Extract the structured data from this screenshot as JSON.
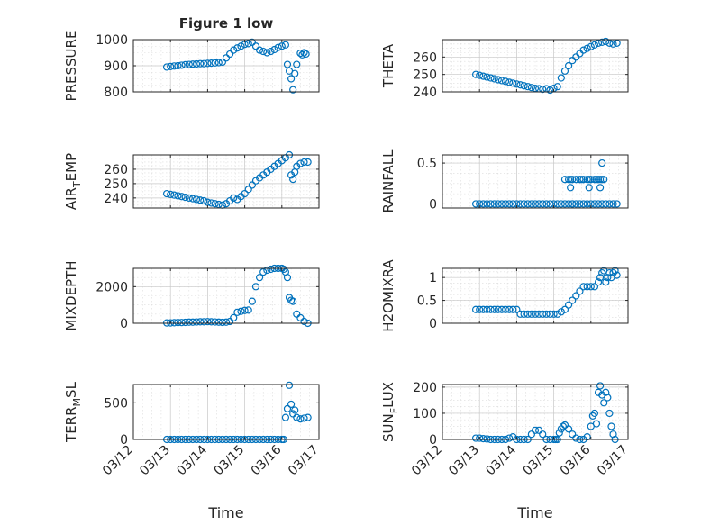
{
  "figure": {
    "title": "Figure 1 low",
    "xlabel": "Time",
    "marker_color": "#0072BD",
    "x_ticks": [
      "03/12",
      "03/13",
      "03/14",
      "03/15",
      "03/16",
      "03/17"
    ]
  },
  "chart_data": [
    {
      "type": "scatter",
      "ylabel": "PRESSURE",
      "ylabel_sub": "",
      "ylim": [
        800,
        1000
      ],
      "yticks": [
        800,
        900,
        1000
      ],
      "ytick_labels": [
        "800",
        "900",
        "1000"
      ],
      "grid": true,
      "marker": "circle",
      "x": [
        12.9,
        13.0,
        13.1,
        13.2,
        13.3,
        13.4,
        13.5,
        13.6,
        13.7,
        13.8,
        13.9,
        14.0,
        14.1,
        14.2,
        14.3,
        14.4,
        14.5,
        14.6,
        14.7,
        14.8,
        14.9,
        15.0,
        15.1,
        15.2,
        15.3,
        15.4,
        15.5,
        15.6,
        15.7,
        15.8,
        15.9,
        16.0,
        16.1,
        16.15,
        16.2,
        16.25,
        16.3,
        16.35,
        16.4,
        16.5,
        16.55,
        16.6,
        16.65
      ],
      "y": [
        895,
        897,
        899,
        900,
        902,
        904,
        905,
        906,
        907,
        908,
        908,
        909,
        910,
        911,
        912,
        914,
        930,
        945,
        960,
        968,
        975,
        982,
        985,
        990,
        975,
        960,
        955,
        950,
        955,
        962,
        970,
        975,
        980,
        905,
        880,
        850,
        808,
        870,
        905,
        948,
        942,
        950,
        945
      ]
    },
    {
      "type": "scatter",
      "ylabel": "THETA",
      "ylabel_sub": "",
      "ylim": [
        240,
        270
      ],
      "yticks": [
        240,
        250,
        260
      ],
      "ytick_labels": [
        "240",
        "250",
        "260"
      ],
      "grid": true,
      "marker": "circle",
      "x": [
        12.9,
        13.0,
        13.1,
        13.2,
        13.3,
        13.4,
        13.5,
        13.6,
        13.7,
        13.8,
        13.9,
        14.0,
        14.1,
        14.2,
        14.3,
        14.4,
        14.5,
        14.6,
        14.7,
        14.8,
        14.9,
        15.0,
        15.1,
        15.2,
        15.3,
        15.4,
        15.5,
        15.6,
        15.7,
        15.8,
        15.9,
        16.0,
        16.1,
        16.2,
        16.3,
        16.4,
        16.5,
        16.6,
        16.7
      ],
      "y": [
        250,
        249.5,
        249,
        248.5,
        248,
        247.5,
        247,
        246.5,
        246,
        245.5,
        245,
        244.5,
        244,
        243.5,
        243,
        242.5,
        242,
        241.8,
        241.5,
        241.8,
        241,
        242,
        243,
        248,
        252,
        255,
        258,
        260,
        262,
        264,
        265,
        266,
        267,
        268,
        268.5,
        269,
        268,
        267.5,
        268
      ]
    },
    {
      "type": "scatter",
      "ylabel": "AIR",
      "ylabel_sub": "T",
      "ylabel_rest": "EMP",
      "ylim": [
        233,
        270
      ],
      "yticks": [
        240,
        250,
        260
      ],
      "ytick_labels": [
        "240",
        "250",
        "260"
      ],
      "grid": true,
      "marker": "circle",
      "x": [
        12.9,
        13.0,
        13.1,
        13.2,
        13.3,
        13.4,
        13.5,
        13.6,
        13.7,
        13.8,
        13.9,
        14.0,
        14.1,
        14.2,
        14.3,
        14.4,
        14.5,
        14.6,
        14.7,
        14.8,
        14.9,
        15.0,
        15.1,
        15.2,
        15.3,
        15.4,
        15.5,
        15.6,
        15.7,
        15.8,
        15.9,
        16.0,
        16.1,
        16.2,
        16.25,
        16.3,
        16.35,
        16.4,
        16.5,
        16.6,
        16.7
      ],
      "y": [
        243,
        242.5,
        242,
        241.5,
        241,
        240.5,
        240,
        239.5,
        239,
        238.5,
        238,
        237,
        236.5,
        236,
        235.5,
        235,
        236,
        238,
        240,
        239,
        241,
        243,
        246,
        249,
        252,
        254,
        256,
        258,
        260,
        262,
        264,
        266,
        268,
        270,
        256,
        253,
        258,
        262,
        264,
        265,
        265
      ]
    },
    {
      "type": "scatter",
      "ylabel": "RAINFALL",
      "ylabel_sub": "",
      "ylim": [
        -0.05,
        0.6
      ],
      "yticks": [
        0,
        0.5
      ],
      "ytick_labels": [
        "0",
        "0.5"
      ],
      "grid": true,
      "marker": "circle",
      "x": [
        12.9,
        13.0,
        13.1,
        13.2,
        13.3,
        13.4,
        13.5,
        13.6,
        13.7,
        13.8,
        13.9,
        14.0,
        14.1,
        14.2,
        14.3,
        14.4,
        14.5,
        14.6,
        14.7,
        14.8,
        14.9,
        15.0,
        15.1,
        15.2,
        15.3,
        15.4,
        15.5,
        15.6,
        15.7,
        15.8,
        15.9,
        16.0,
        16.1,
        16.2,
        16.3,
        16.4,
        16.5,
        16.6,
        16.7,
        15.3,
        15.4,
        15.45,
        15.5,
        15.6,
        15.7,
        15.75,
        15.8,
        15.9,
        15.95,
        16.0,
        16.1,
        16.15,
        16.2,
        16.25,
        16.3,
        16.35,
        15.45,
        15.95,
        16.25,
        16.3,
        15.5
      ],
      "y": [
        0,
        0,
        0,
        0,
        0,
        0,
        0,
        0,
        0,
        0,
        0,
        0,
        0,
        0,
        0,
        0,
        0,
        0,
        0,
        0,
        0,
        0,
        0,
        0,
        0,
        0,
        0,
        0,
        0,
        0,
        0,
        0,
        0,
        0,
        0,
        0,
        0,
        0,
        0,
        0.3,
        0.3,
        0.3,
        0.3,
        0.3,
        0.3,
        0.3,
        0.3,
        0.3,
        0.3,
        0.3,
        0.3,
        0.3,
        0.3,
        0.3,
        0.3,
        0.3,
        0.2,
        0.2,
        0.2,
        0.5,
        0
      ]
    },
    {
      "type": "scatter",
      "ylabel": "MIXDEPTH",
      "ylabel_sub": "",
      "ylim": [
        0,
        3000
      ],
      "yticks": [
        0,
        2000
      ],
      "ytick_labels": [
        "0",
        "2000"
      ],
      "grid": true,
      "marker": "circle",
      "x": [
        12.9,
        13.0,
        13.1,
        13.2,
        13.3,
        13.4,
        13.5,
        13.6,
        13.7,
        13.8,
        13.9,
        14.0,
        14.1,
        14.2,
        14.3,
        14.4,
        14.5,
        14.6,
        14.7,
        14.8,
        14.9,
        15.0,
        15.1,
        15.2,
        15.3,
        15.4,
        15.5,
        15.6,
        15.7,
        15.8,
        15.9,
        16.0,
        16.05,
        16.1,
        16.15,
        16.2,
        16.25,
        16.3,
        16.4,
        16.5,
        16.6,
        16.7
      ],
      "y": [
        20,
        20,
        30,
        40,
        40,
        50,
        60,
        60,
        70,
        80,
        80,
        90,
        80,
        70,
        60,
        50,
        60,
        100,
        300,
        600,
        650,
        700,
        720,
        1200,
        2000,
        2500,
        2800,
        2900,
        2950,
        3000,
        3000,
        3000,
        2950,
        2800,
        2500,
        1400,
        1250,
        1200,
        500,
        300,
        100,
        0
      ]
    },
    {
      "type": "scatter",
      "ylabel": "H2OMIXRA",
      "ylabel_sub": "",
      "ylim": [
        0,
        1.2
      ],
      "yticks": [
        0,
        0.5,
        1
      ],
      "ytick_labels": [
        "0",
        "0.5",
        "1"
      ],
      "grid": true,
      "marker": "circle",
      "x": [
        12.9,
        13.0,
        13.1,
        13.2,
        13.3,
        13.4,
        13.5,
        13.6,
        13.7,
        13.8,
        13.9,
        14.0,
        14.1,
        14.2,
        14.3,
        14.4,
        14.5,
        14.6,
        14.7,
        14.8,
        14.9,
        15.0,
        15.1,
        15.2,
        15.3,
        15.4,
        15.5,
        15.6,
        15.7,
        15.8,
        15.9,
        16.0,
        16.1,
        16.2,
        16.25,
        16.3,
        16.35,
        16.4,
        16.45,
        16.5,
        16.55,
        16.6,
        16.65,
        16.7
      ],
      "y": [
        0.3,
        0.3,
        0.3,
        0.3,
        0.3,
        0.3,
        0.3,
        0.3,
        0.3,
        0.3,
        0.3,
        0.3,
        0.2,
        0.2,
        0.2,
        0.2,
        0.2,
        0.2,
        0.2,
        0.2,
        0.2,
        0.2,
        0.2,
        0.25,
        0.3,
        0.4,
        0.5,
        0.6,
        0.7,
        0.8,
        0.8,
        0.8,
        0.8,
        0.9,
        1.0,
        1.1,
        1.15,
        0.9,
        1.0,
        1.1,
        1.0,
        1.1,
        1.15,
        1.05
      ]
    },
    {
      "type": "scatter",
      "ylabel": "TERR",
      "ylabel_sub": "M",
      "ylabel_rest": "SL",
      "ylim": [
        0,
        750
      ],
      "yticks": [
        0,
        500
      ],
      "ytick_labels": [
        "0",
        "500"
      ],
      "grid": true,
      "marker": "circle",
      "x": [
        12.9,
        13.0,
        13.1,
        13.2,
        13.3,
        13.4,
        13.5,
        13.6,
        13.7,
        13.8,
        13.9,
        14.0,
        14.1,
        14.2,
        14.3,
        14.4,
        14.5,
        14.6,
        14.7,
        14.8,
        14.9,
        15.0,
        15.1,
        15.2,
        15.3,
        15.4,
        15.5,
        15.6,
        15.7,
        15.8,
        15.9,
        16.0,
        16.05,
        16.1,
        16.15,
        16.2,
        16.25,
        16.3,
        16.35,
        16.4,
        16.5,
        16.6,
        16.7
      ],
      "y": [
        0,
        0,
        0,
        0,
        0,
        0,
        0,
        0,
        0,
        0,
        0,
        0,
        0,
        0,
        0,
        0,
        0,
        0,
        0,
        0,
        0,
        0,
        0,
        0,
        0,
        0,
        0,
        0,
        0,
        0,
        0,
        0,
        0,
        300,
        420,
        740,
        480,
        350,
        400,
        300,
        280,
        290,
        300
      ]
    },
    {
      "type": "scatter",
      "ylabel": "SUN",
      "ylabel_sub": "F",
      "ylabel_rest": "LUX",
      "ylim": [
        0,
        210
      ],
      "yticks": [
        0,
        100,
        200
      ],
      "ytick_labels": [
        "0",
        "100",
        "200"
      ],
      "grid": true,
      "marker": "circle",
      "x": [
        12.9,
        13.0,
        13.1,
        13.2,
        13.3,
        13.4,
        13.5,
        13.6,
        13.7,
        13.8,
        13.9,
        14.0,
        14.1,
        14.2,
        14.3,
        14.4,
        14.5,
        14.6,
        14.7,
        14.8,
        14.9,
        15.0,
        15.05,
        15.1,
        15.15,
        15.2,
        15.25,
        15.3,
        15.4,
        15.5,
        15.6,
        15.7,
        15.8,
        15.9,
        16.0,
        16.05,
        16.1,
        16.15,
        16.2,
        16.25,
        16.3,
        16.35,
        16.4,
        16.45,
        16.5,
        16.55,
        16.6,
        16.65
      ],
      "y": [
        5,
        5,
        3,
        2,
        0,
        0,
        0,
        0,
        0,
        5,
        10,
        0,
        0,
        0,
        0,
        20,
        35,
        35,
        20,
        0,
        0,
        0,
        0,
        0,
        25,
        40,
        50,
        55,
        40,
        20,
        5,
        0,
        0,
        10,
        50,
        90,
        100,
        60,
        180,
        205,
        170,
        140,
        180,
        160,
        100,
        50,
        20,
        0
      ]
    }
  ]
}
